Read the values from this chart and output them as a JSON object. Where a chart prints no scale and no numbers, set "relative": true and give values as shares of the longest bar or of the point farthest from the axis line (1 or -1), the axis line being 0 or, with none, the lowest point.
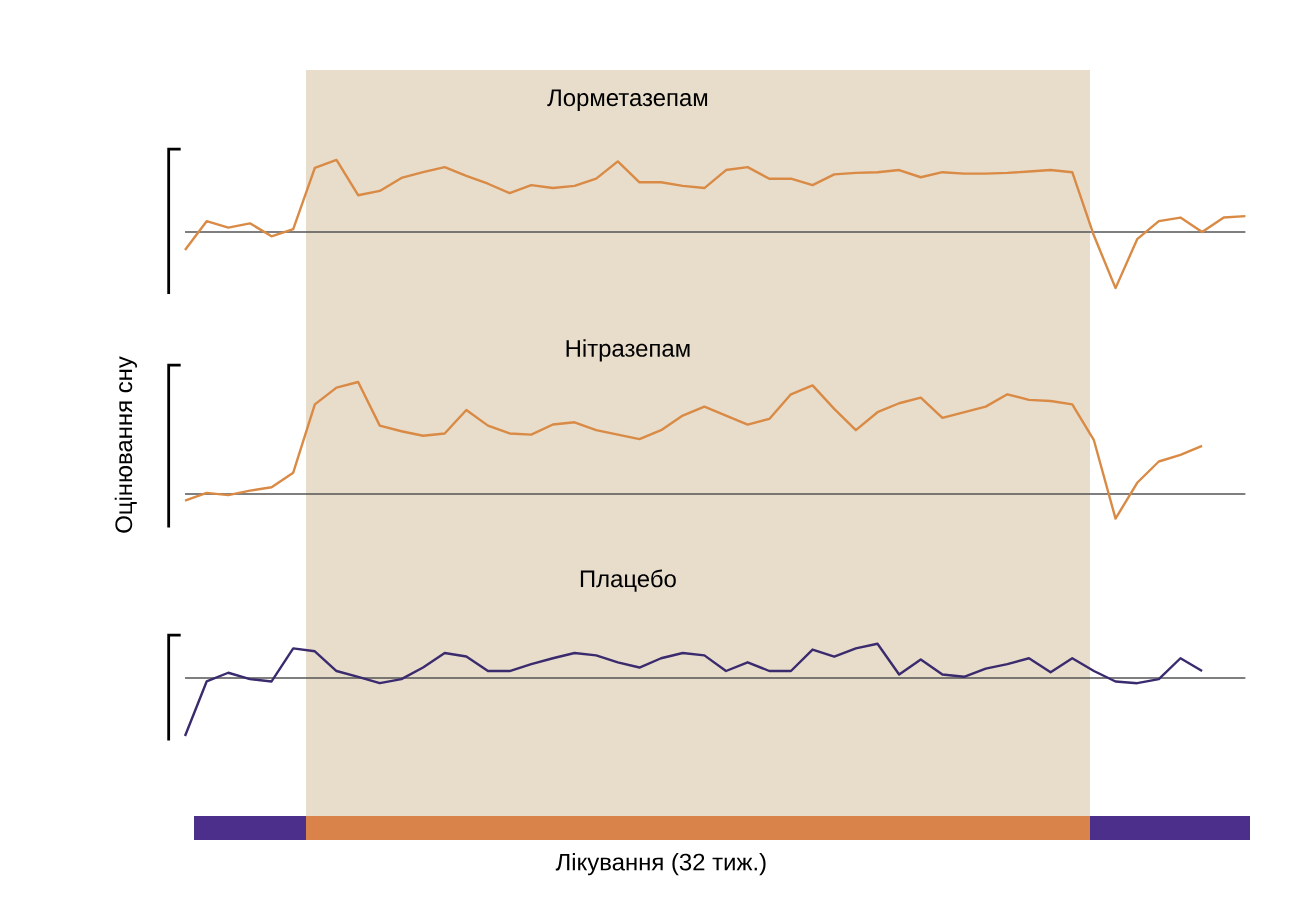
{
  "chart_data": [
    {
      "type": "line",
      "title": "Лорметазепам",
      "relative": true,
      "categories": [
        null,
        null,
        null,
        null,
        null,
        null,
        null,
        null,
        null,
        null,
        null,
        null,
        null,
        null,
        null,
        null,
        null,
        null,
        null,
        null,
        null,
        null,
        null,
        null,
        null,
        null,
        null,
        null,
        null,
        null,
        null,
        null,
        null,
        null,
        null,
        null,
        null,
        null,
        null,
        null,
        null,
        null,
        null,
        null,
        null,
        null,
        null,
        null,
        null,
        null
      ],
      "series": [
        {
          "color": "#d98a45",
          "values": [
            -0.25,
            0.15,
            0.06,
            0.12,
            -0.06,
            0.04,
            0.89,
            1,
            0.51,
            0.57,
            0.75,
            0.83,
            0.9,
            0.78,
            0.67,
            0.54,
            0.65,
            0.61,
            0.64,
            0.74,
            0.98,
            0.69,
            0.69,
            0.64,
            0.61,
            0.86,
            0.9,
            0.74,
            0.74,
            0.65,
            0.8,
            0.82,
            0.83,
            0.86,
            0.76,
            0.83,
            0.81,
            0.81,
            0.82,
            0.84,
            0.86,
            0.83,
            -0.05,
            -0.78,
            -0.1,
            0.15,
            0.2,
            0,
            0.2,
            0.22
          ]
        }
      ]
    },
    {
      "type": "line",
      "title": "Нітразепам",
      "ylabel": "Оцінювання сну",
      "relative": true,
      "categories": [
        null,
        null,
        null,
        null,
        null,
        null,
        null,
        null,
        null,
        null,
        null,
        null,
        null,
        null,
        null,
        null,
        null,
        null,
        null,
        null,
        null,
        null,
        null,
        null,
        null,
        null,
        null,
        null,
        null,
        null,
        null,
        null,
        null,
        null,
        null,
        null,
        null,
        null,
        null,
        null,
        null,
        null,
        null,
        null,
        null,
        null,
        null,
        null,
        null,
        null
      ],
      "series": [
        {
          "color": "#d98a45",
          "values": [
            -0.06,
            0.01,
            -0.01,
            0.03,
            0.06,
            0.19,
            0.8,
            0.95,
            1,
            0.61,
            0.56,
            0.52,
            0.54,
            0.75,
            0.61,
            0.54,
            0.53,
            0.62,
            0.64,
            0.57,
            0.53,
            0.49,
            0.57,
            0.7,
            0.78,
            0.7,
            0.62,
            0.67,
            0.89,
            0.97,
            0.76,
            0.57,
            0.73,
            0.81,
            0.86,
            0.68,
            0.73,
            0.78,
            0.89,
            0.84,
            0.83,
            0.8,
            0.48,
            -0.22,
            0.1,
            0.29,
            0.35,
            0.43,
            null,
            null
          ]
        }
      ]
    },
    {
      "type": "line",
      "title": "Плацебо",
      "xlabel": "Лікування (32 тиж.)",
      "relative": true,
      "categories": [
        null,
        null,
        null,
        null,
        null,
        null,
        null,
        null,
        null,
        null,
        null,
        null,
        null,
        null,
        null,
        null,
        null,
        null,
        null,
        null,
        null,
        null,
        null,
        null,
        null,
        null,
        null,
        null,
        null,
        null,
        null,
        null,
        null,
        null,
        null,
        null,
        null,
        null,
        null,
        null,
        null,
        null,
        null,
        null,
        null,
        null,
        null,
        null,
        null,
        null
      ],
      "series": [
        {
          "color": "#3a2a6e",
          "values": [
            -1,
            -0.06,
            0.09,
            -0.02,
            -0.06,
            0.51,
            0.46,
            0.12,
            0.02,
            -0.09,
            -0.02,
            0.18,
            0.43,
            0.37,
            0.12,
            0.12,
            0.24,
            0.34,
            0.43,
            0.39,
            0.27,
            0.18,
            0.34,
            0.43,
            0.39,
            0.12,
            0.27,
            0.12,
            0.12,
            0.49,
            0.37,
            0.51,
            0.59,
            0.06,
            0.32,
            0.06,
            0.02,
            0.16,
            0.24,
            0.34,
            0.1,
            0.34,
            0.12,
            -0.06,
            -0.09,
            -0.02,
            0.34,
            0.12,
            null,
            null
          ]
        }
      ]
    }
  ]
}
